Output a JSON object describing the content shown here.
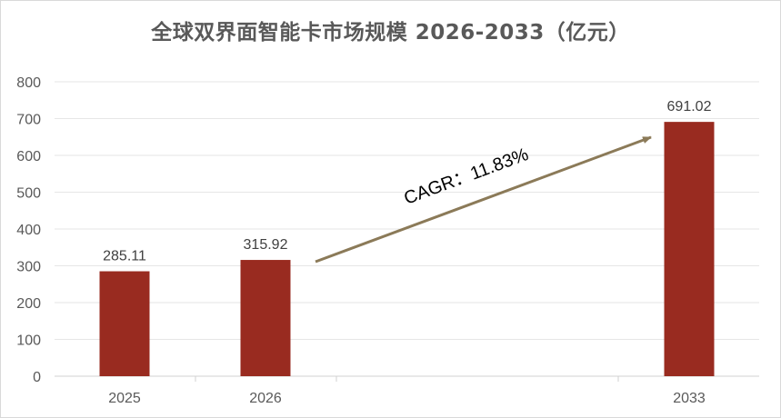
{
  "chart_data": {
    "type": "bar",
    "title": "全球双界面智能卡市场规模 2026-2033（亿元）",
    "xlabel": "",
    "ylabel": "",
    "categories": [
      "2025",
      "2026",
      "2033"
    ],
    "values": [
      285.11,
      315.92,
      691.02
    ],
    "value_labels": [
      "285.11",
      "315.92",
      "691.02"
    ],
    "ylim": [
      0,
      800
    ],
    "yticks": [
      "0",
      "100",
      "200",
      "300",
      "400",
      "500",
      "600",
      "700",
      "800"
    ],
    "grid": true,
    "legend": "none",
    "annotation": {
      "text": "CAGR：11.83%",
      "arrow_from": "2026",
      "arrow_to": "2033"
    },
    "colors": {
      "bar": "#992b20",
      "arrow": "#8b7a58",
      "grid": "#e6e6e6",
      "axis_text": "#595959",
      "label_text": "#404040"
    }
  }
}
